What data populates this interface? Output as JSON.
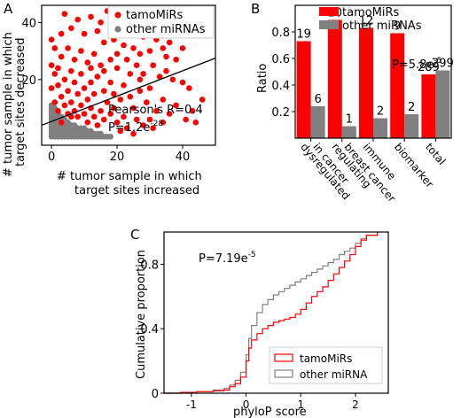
{
  "panel_labels": {
    "a": "A",
    "b": "B",
    "c": "C"
  },
  "colors": {
    "tamo": "#ff0000",
    "other": "#808080",
    "axis": "#000000"
  },
  "chart_data": [
    {
      "panel": "A",
      "type": "scatter",
      "xlabel_lines": [
        "# tumor sample in which",
        "target sites increased"
      ],
      "ylabel_lines": [
        "# tumor sample in which",
        "target sites decreased"
      ],
      "xlim": [
        -3,
        50
      ],
      "ylim": [
        -3,
        46
      ],
      "xticks": [
        0,
        20,
        40
      ],
      "yticks": [
        20,
        40
      ],
      "legend": [
        "tamoMiRs",
        "other miRNAs"
      ],
      "legend_position": "top-right",
      "annotation_r": "Pearson's R=0.4",
      "annotation_p_base": "P=1.2e",
      "annotation_p_exp": "-28",
      "fit_line": {
        "x": [
          -3,
          50
        ],
        "y": [
          4,
          27.5
        ]
      },
      "series": [
        {
          "name": "tamoMiRs",
          "points": [
            [
              4,
              43
            ],
            [
              8,
              41
            ],
            [
              12,
              42
            ],
            [
              15,
              40
            ],
            [
              17,
              44
            ],
            [
              19,
              38
            ],
            [
              21,
              42
            ],
            [
              23,
              40
            ],
            [
              26,
              41
            ],
            [
              29,
              38
            ],
            [
              31,
              44
            ],
            [
              33,
              40
            ],
            [
              6,
              38
            ],
            [
              10,
              36
            ],
            [
              14,
              37
            ],
            [
              24,
              36
            ],
            [
              28,
              35
            ],
            [
              32,
              34
            ],
            [
              36,
              33
            ],
            [
              38,
              37
            ],
            [
              40,
              31
            ],
            [
              16,
              33
            ],
            [
              19,
              34
            ],
            [
              22,
              32
            ],
            [
              25,
              31
            ],
            [
              30,
              30
            ],
            [
              34,
              31
            ],
            [
              1,
              31
            ],
            [
              3,
              28
            ],
            [
              5,
              31
            ],
            [
              7,
              27
            ],
            [
              9,
              30
            ],
            [
              11,
              26
            ],
            [
              13,
              29
            ],
            [
              15,
              25
            ],
            [
              18,
              27
            ],
            [
              20,
              24
            ],
            [
              23,
              27
            ],
            [
              26,
              25
            ],
            [
              28,
              22
            ],
            [
              31,
              25
            ],
            [
              33,
              21
            ],
            [
              35,
              23
            ],
            [
              37,
              20
            ],
            [
              40,
              19
            ],
            [
              42,
              17
            ],
            [
              46,
              13
            ],
            [
              1,
              22
            ],
            [
              2,
              18
            ],
            [
              4,
              20
            ],
            [
              5,
              16
            ],
            [
              7,
              19
            ],
            [
              8,
              15
            ],
            [
              10,
              17
            ],
            [
              11,
              13
            ],
            [
              12,
              19
            ],
            [
              13,
              15
            ],
            [
              14,
              21
            ],
            [
              16,
              16
            ],
            [
              17,
              12
            ],
            [
              18,
              19
            ],
            [
              19,
              15
            ],
            [
              21,
              13
            ],
            [
              22,
              18
            ],
            [
              24,
              14
            ],
            [
              25,
              10
            ],
            [
              27,
              16
            ],
            [
              29,
              12
            ],
            [
              30,
              17
            ],
            [
              32,
              9
            ],
            [
              34,
              13
            ],
            [
              36,
              8
            ],
            [
              38,
              11
            ],
            [
              41,
              6
            ],
            [
              44,
              5
            ],
            [
              1,
              12
            ],
            [
              2,
              9
            ],
            [
              3,
              14
            ],
            [
              4,
              11
            ],
            [
              5,
              8
            ],
            [
              6,
              12
            ],
            [
              7,
              9
            ],
            [
              8,
              7
            ],
            [
              9,
              11
            ],
            [
              10,
              8
            ],
            [
              11,
              5
            ],
            [
              12,
              10
            ],
            [
              13,
              7
            ],
            [
              14,
              4
            ],
            [
              15,
              9
            ],
            [
              16,
              6
            ],
            [
              18,
              8
            ],
            [
              20,
              5
            ],
            [
              22,
              7
            ],
            [
              23,
              3
            ],
            [
              26,
              6
            ],
            [
              28,
              4
            ],
            [
              31,
              3
            ],
            [
              34,
              5
            ],
            [
              0,
              17
            ],
            [
              0,
              25
            ],
            [
              0,
              34
            ],
            [
              2,
              24
            ],
            [
              3,
              36
            ],
            [
              6,
              23
            ],
            [
              9,
              22
            ],
            [
              12,
              24
            ],
            [
              20,
              29
            ],
            [
              35,
              28
            ],
            [
              27,
              20
            ],
            [
              24,
              22
            ],
            [
              16,
              23
            ],
            [
              6,
              7
            ],
            [
              19,
              10
            ],
            [
              21,
              2
            ],
            [
              25,
              1
            ],
            [
              30,
              6
            ],
            [
              3,
              5
            ],
            [
              27,
              29
            ],
            [
              38,
              27
            ],
            [
              43,
              9
            ]
          ]
        },
        {
          "name": "other miRNAs",
          "points": [
            [
              0,
              0
            ],
            [
              1,
              0
            ],
            [
              2,
              0
            ],
            [
              3,
              0
            ],
            [
              4,
              0
            ],
            [
              5,
              0
            ],
            [
              6,
              0
            ],
            [
              7,
              0
            ],
            [
              8,
              0
            ],
            [
              9,
              0
            ],
            [
              10,
              0
            ],
            [
              11,
              0
            ],
            [
              12,
              0
            ],
            [
              13,
              0
            ],
            [
              14,
              0
            ],
            [
              0,
              1
            ],
            [
              1,
              1
            ],
            [
              2,
              1
            ],
            [
              3,
              1
            ],
            [
              4,
              1
            ],
            [
              5,
              1
            ],
            [
              6,
              1
            ],
            [
              7,
              1
            ],
            [
              8,
              1
            ],
            [
              9,
              1
            ],
            [
              10,
              1
            ],
            [
              11,
              1
            ],
            [
              12,
              1
            ],
            [
              0,
              2
            ],
            [
              1,
              2
            ],
            [
              2,
              2
            ],
            [
              3,
              2
            ],
            [
              4,
              2
            ],
            [
              5,
              2
            ],
            [
              6,
              2
            ],
            [
              7,
              2
            ],
            [
              8,
              2
            ],
            [
              9,
              2
            ],
            [
              10,
              2
            ],
            [
              0,
              3
            ],
            [
              1,
              3
            ],
            [
              2,
              3
            ],
            [
              3,
              3
            ],
            [
              4,
              3
            ],
            [
              5,
              3
            ],
            [
              6,
              3
            ],
            [
              7,
              3
            ],
            [
              8,
              3
            ],
            [
              0,
              4
            ],
            [
              1,
              4
            ],
            [
              2,
              4
            ],
            [
              3,
              4
            ],
            [
              4,
              4
            ],
            [
              5,
              4
            ],
            [
              6,
              4
            ],
            [
              7,
              4
            ],
            [
              0,
              5
            ],
            [
              1,
              5
            ],
            [
              2,
              5
            ],
            [
              3,
              5
            ],
            [
              4,
              5
            ],
            [
              5,
              5
            ],
            [
              0,
              6
            ],
            [
              1,
              6
            ],
            [
              2,
              6
            ],
            [
              3,
              6
            ],
            [
              4,
              6
            ],
            [
              0,
              7
            ],
            [
              1,
              7
            ],
            [
              2,
              7
            ],
            [
              3,
              7
            ],
            [
              0,
              8
            ],
            [
              1,
              8
            ],
            [
              2,
              8
            ],
            [
              0,
              9
            ],
            [
              1,
              9
            ],
            [
              0,
              10
            ],
            [
              1,
              10
            ],
            [
              0,
              11
            ],
            [
              15,
              0
            ],
            [
              16,
              0
            ],
            [
              17,
              0
            ],
            [
              18,
              0
            ],
            [
              13,
              1
            ],
            [
              14,
              1
            ],
            [
              15,
              1
            ],
            [
              11,
              2
            ],
            [
              12,
              2
            ],
            [
              9,
              3
            ],
            [
              10,
              3
            ]
          ]
        }
      ]
    },
    {
      "panel": "B",
      "type": "bar",
      "ylabel": "Ratio",
      "ylim": [
        0,
        1.0
      ],
      "yticks": [
        "0.2",
        "0.4",
        "0.6",
        "0.8"
      ],
      "ytick_values": [
        0.2,
        0.4,
        0.6,
        0.8
      ],
      "legend_position": "top-right",
      "categories": [
        {
          "lines": [
            "dysregulated",
            "in cancer"
          ]
        },
        {
          "lines": [
            "regulating",
            "breast cancer"
          ]
        },
        {
          "lines": [
            "immune"
          ]
        },
        {
          "lines": [
            "biomarker"
          ]
        },
        {
          "lines": [
            "total"
          ]
        }
      ],
      "series": [
        {
          "name": "tamoMiRs",
          "values": [
            0.73,
            0.89,
            0.83,
            0.79,
            0.48
          ],
          "labels": [
            "19",
            "10",
            "12",
            "9",
            "289"
          ]
        },
        {
          "name": "other miRNAs",
          "values": [
            0.24,
            0.09,
            0.15,
            0.18,
            0.51
          ],
          "labels": [
            "6",
            "1",
            "2",
            "2",
            "299"
          ]
        }
      ],
      "annotation_p_base": "P=5.8e",
      "annotation_p_exp": "-5"
    },
    {
      "panel": "C",
      "type": "line",
      "xlabel": "phyloP score",
      "ylabel": "Cumulative proportion",
      "xlim": [
        -1.5,
        2.6
      ],
      "ylim": [
        0,
        1.0
      ],
      "xticks": [
        "-1",
        "0",
        "1",
        "2"
      ],
      "xtick_values": [
        -1,
        0,
        1,
        2
      ],
      "yticks": [
        "0",
        "0.4",
        "0.8"
      ],
      "ytick_values": [
        0,
        0.4,
        0.8
      ],
      "legend_position": "bottom-right",
      "annotation_p_base": "P=7.19e",
      "annotation_p_exp": "-5",
      "series": [
        {
          "name": "tamoMiRs",
          "x": [
            -1.5,
            -1.2,
            -0.9,
            -0.6,
            -0.4,
            -0.3,
            -0.2,
            -0.1,
            0.0,
            0.05,
            0.1,
            0.2,
            0.3,
            0.4,
            0.5,
            0.6,
            0.7,
            0.8,
            0.9,
            1.0,
            1.1,
            1.2,
            1.3,
            1.4,
            1.5,
            1.6,
            1.7,
            1.8,
            1.9,
            2.0,
            2.1,
            2.2,
            2.4
          ],
          "y": [
            0.0,
            0.005,
            0.01,
            0.015,
            0.02,
            0.04,
            0.06,
            0.1,
            0.2,
            0.28,
            0.33,
            0.37,
            0.4,
            0.42,
            0.44,
            0.45,
            0.46,
            0.47,
            0.49,
            0.52,
            0.56,
            0.6,
            0.63,
            0.66,
            0.7,
            0.74,
            0.78,
            0.82,
            0.86,
            0.91,
            0.95,
            0.98,
            1.0
          ]
        },
        {
          "name": "other miRNA",
          "x": [
            -1.5,
            -1.2,
            -0.9,
            -0.6,
            -0.4,
            -0.3,
            -0.2,
            -0.1,
            0.0,
            0.05,
            0.1,
            0.2,
            0.3,
            0.4,
            0.5,
            0.6,
            0.7,
            0.8,
            0.9,
            1.0,
            1.1,
            1.2,
            1.3,
            1.4,
            1.5,
            1.6,
            1.7,
            1.8,
            1.9,
            2.0,
            2.1,
            2.2,
            2.4
          ],
          "y": [
            0.0,
            0.005,
            0.01,
            0.02,
            0.03,
            0.05,
            0.08,
            0.13,
            0.24,
            0.34,
            0.42,
            0.5,
            0.55,
            0.58,
            0.61,
            0.63,
            0.65,
            0.67,
            0.69,
            0.71,
            0.73,
            0.75,
            0.77,
            0.79,
            0.81,
            0.83,
            0.86,
            0.88,
            0.9,
            0.93,
            0.96,
            0.98,
            1.0
          ]
        }
      ]
    }
  ]
}
